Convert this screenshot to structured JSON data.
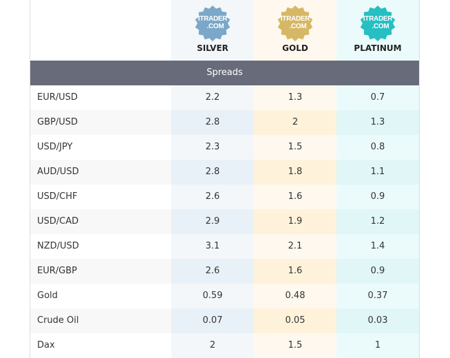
{
  "plans": [
    {
      "name": "SILVER",
      "logo_text": [
        "ITRADER",
        ".COM"
      ],
      "color": "#7ba7c9"
    },
    {
      "name": "GOLD",
      "logo_text": [
        "ITRADER",
        ".COM"
      ],
      "color": "#d6b765"
    },
    {
      "name": "PLATINUM",
      "logo_text": [
        "ITRADER",
        ".COM"
      ],
      "color": "#26bfc2"
    }
  ],
  "section_title": "Spreads",
  "rows": [
    {
      "label": "EUR/USD",
      "values": [
        "2.2",
        "1.3",
        "0.7"
      ]
    },
    {
      "label": "GBP/USD",
      "values": [
        "2.8",
        "2",
        "1.3"
      ]
    },
    {
      "label": "USD/JPY",
      "values": [
        "2.3",
        "1.5",
        "0.8"
      ]
    },
    {
      "label": "AUD/USD",
      "values": [
        "2.8",
        "1.8",
        "1.1"
      ]
    },
    {
      "label": "USD/CHF",
      "values": [
        "2.6",
        "1.6",
        "0.9"
      ]
    },
    {
      "label": "USD/CAD",
      "values": [
        "2.9",
        "1.9",
        "1.2"
      ]
    },
    {
      "label": "NZD/USD",
      "values": [
        "3.1",
        "2.1",
        "1.4"
      ]
    },
    {
      "label": "EUR/GBP",
      "values": [
        "2.6",
        "1.6",
        "0.9"
      ]
    },
    {
      "label": "Gold",
      "values": [
        "0.59",
        "0.48",
        "0.37"
      ]
    },
    {
      "label": "Crude Oil",
      "values": [
        "0.07",
        "0.05",
        "0.03"
      ]
    },
    {
      "label": "Dax",
      "values": [
        "2",
        "1.5",
        "1"
      ]
    }
  ]
}
